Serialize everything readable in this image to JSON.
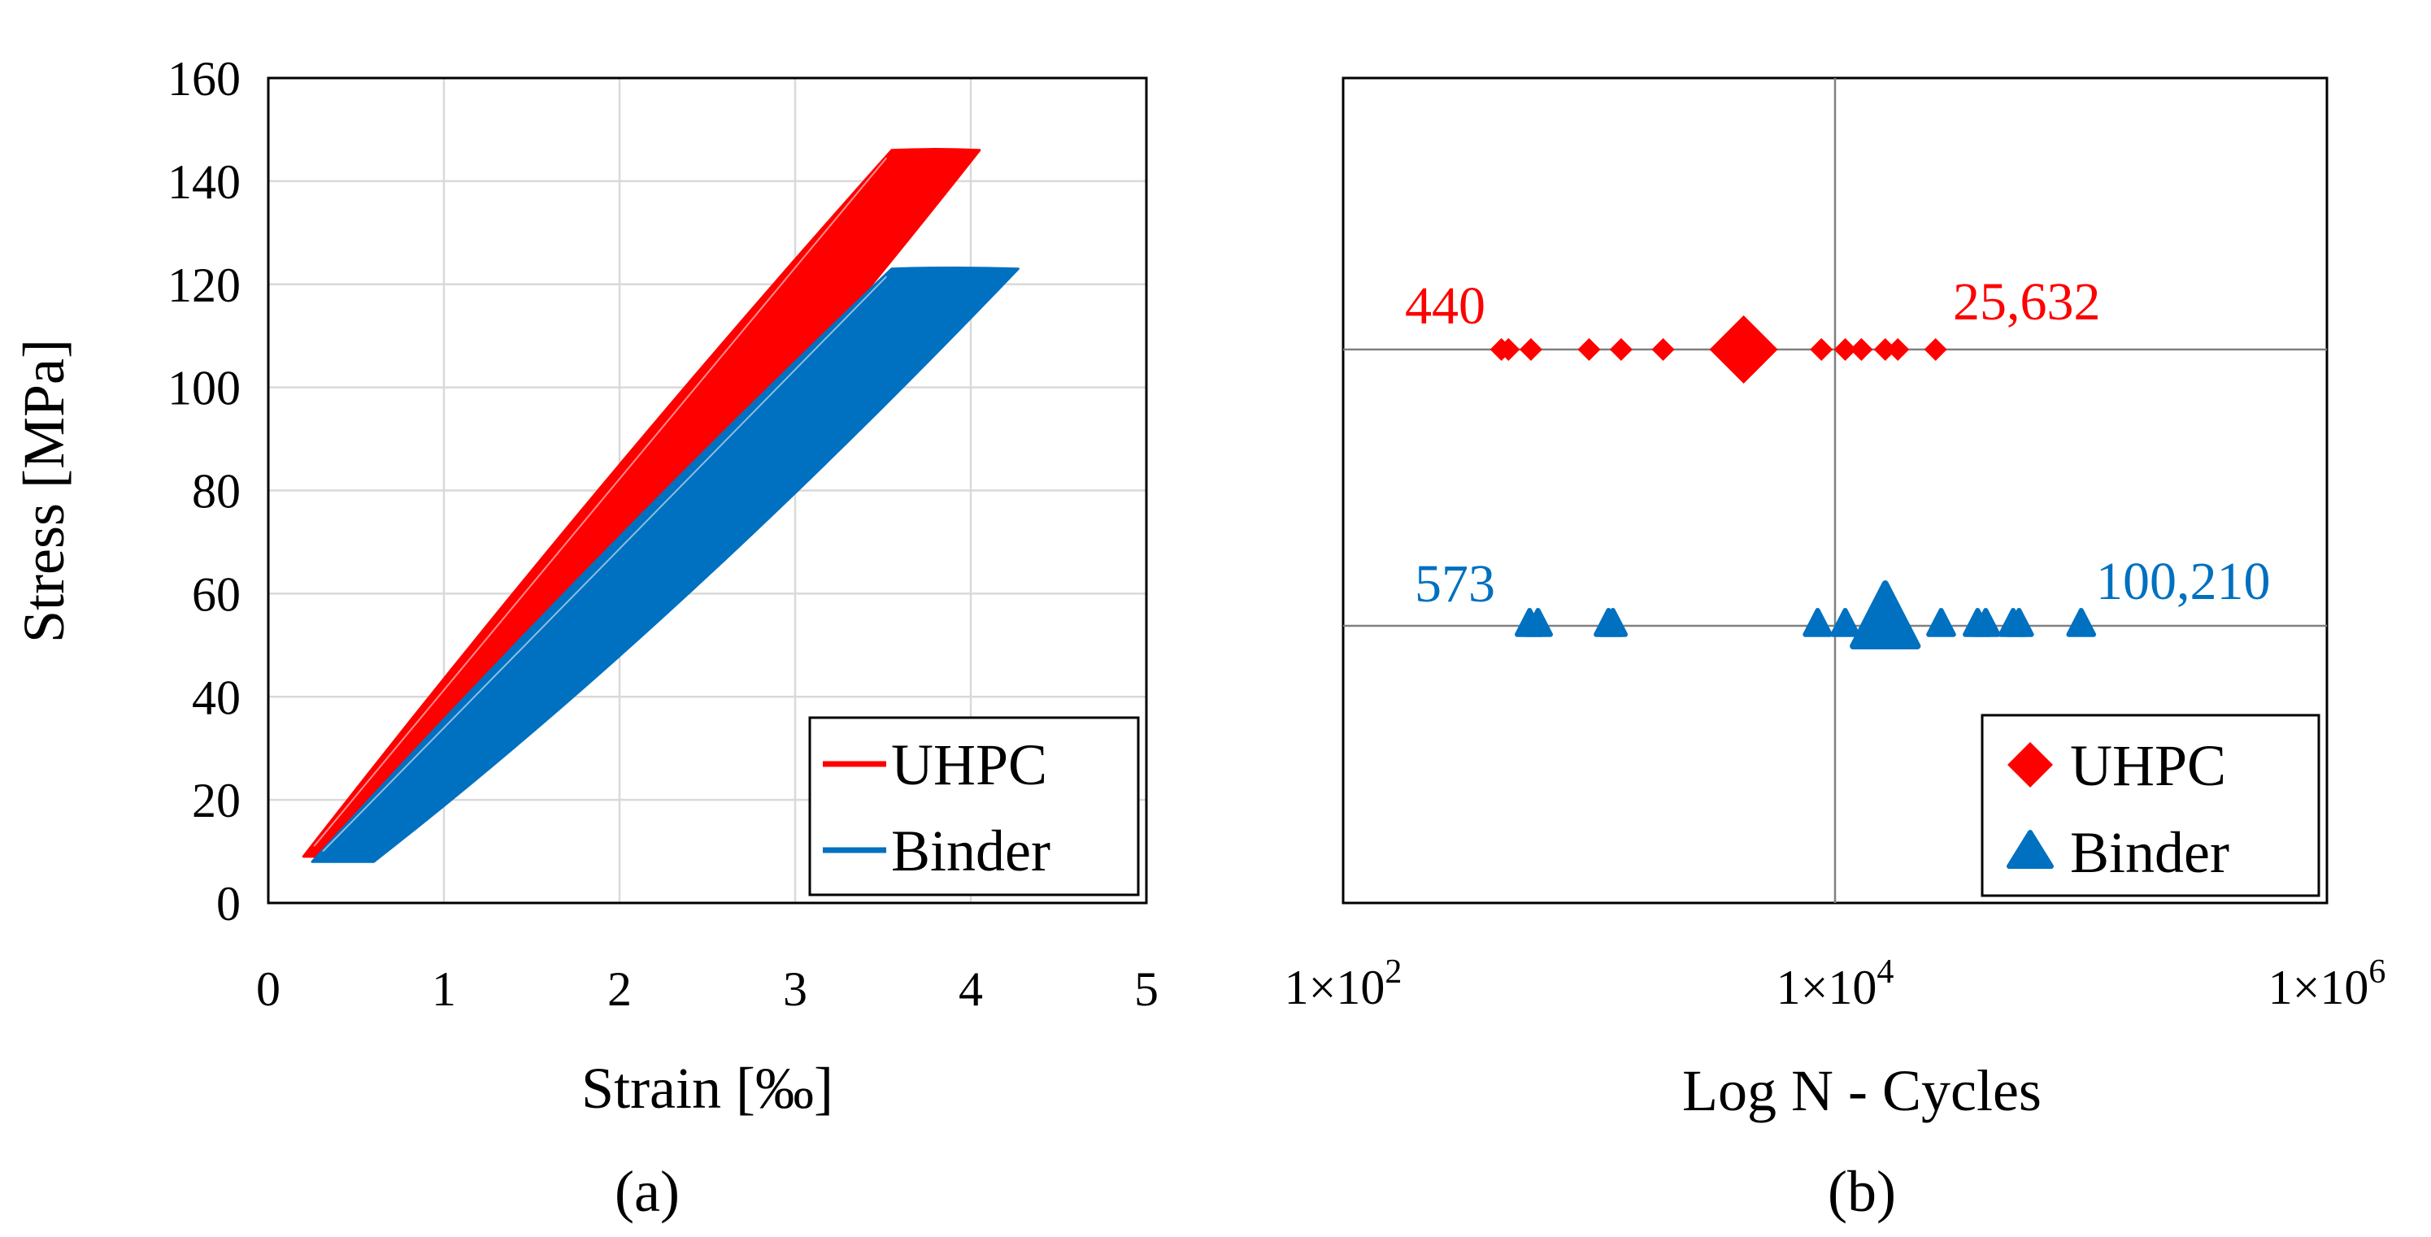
{
  "chart_data": [
    {
      "id": "a",
      "type": "line",
      "caption": "(a)",
      "xlabel": "Strain [‰]",
      "ylabel": "Stress [MPa]",
      "xlim": [
        0,
        5
      ],
      "ylim": [
        0,
        160
      ],
      "xticks": [
        "0",
        "1",
        "2",
        "3",
        "4",
        "5"
      ],
      "yticks": [
        "0",
        "20",
        "40",
        "60",
        "80",
        "100",
        "120",
        "140",
        "160"
      ],
      "grid": true,
      "legend_position": "bottom-right",
      "series": [
        {
          "name": "UHPC",
          "color": "#ff0000",
          "loop": {
            "min_stress": 9,
            "max_stress": 146,
            "rising_strain_start": 0.2,
            "rising_strain_end": 3.55,
            "falling_strain_start": 4.05,
            "falling_strain_end": 0.45
          }
        },
        {
          "name": "Binder",
          "color": "#0070c0",
          "loop": {
            "min_stress": 8,
            "max_stress": 123,
            "rising_strain_start": 0.25,
            "rising_strain_end": 3.55,
            "falling_strain_start": 4.27,
            "falling_strain_end": 0.6
          }
        }
      ]
    },
    {
      "id": "b",
      "type": "scatter",
      "caption": "(b)",
      "xlabel": "Log N - Cycles",
      "xscale": "log",
      "xlim": [
        100,
        1000000
      ],
      "xticks": [
        {
          "base": "1×10",
          "exp": "2"
        },
        {
          "base": "1×10",
          "exp": "4"
        },
        {
          "base": "1×10",
          "exp": "6"
        }
      ],
      "legend_position": "bottom-right",
      "series": [
        {
          "name": "UHPC",
          "marker": "diamond",
          "color": "#ff0000",
          "row": "upper",
          "points": [
            440,
            470,
            580,
            1000,
            1350,
            2000,
            8800,
            11000,
            12800,
            16000,
            18000,
            25632
          ],
          "mean": 4250,
          "min_label": "440",
          "max_label": "25,632"
        },
        {
          "name": "Binder",
          "marker": "triangle",
          "color": "#0070c0",
          "row": "lower",
          "points": [
            573,
            620,
            1200,
            1250,
            8500,
            11000,
            14000,
            15500,
            18000,
            27000,
            38000,
            41000,
            53000,
            56000,
            100210
          ],
          "mean": 16000,
          "min_label": "573",
          "max_label": "100,210"
        }
      ]
    }
  ]
}
